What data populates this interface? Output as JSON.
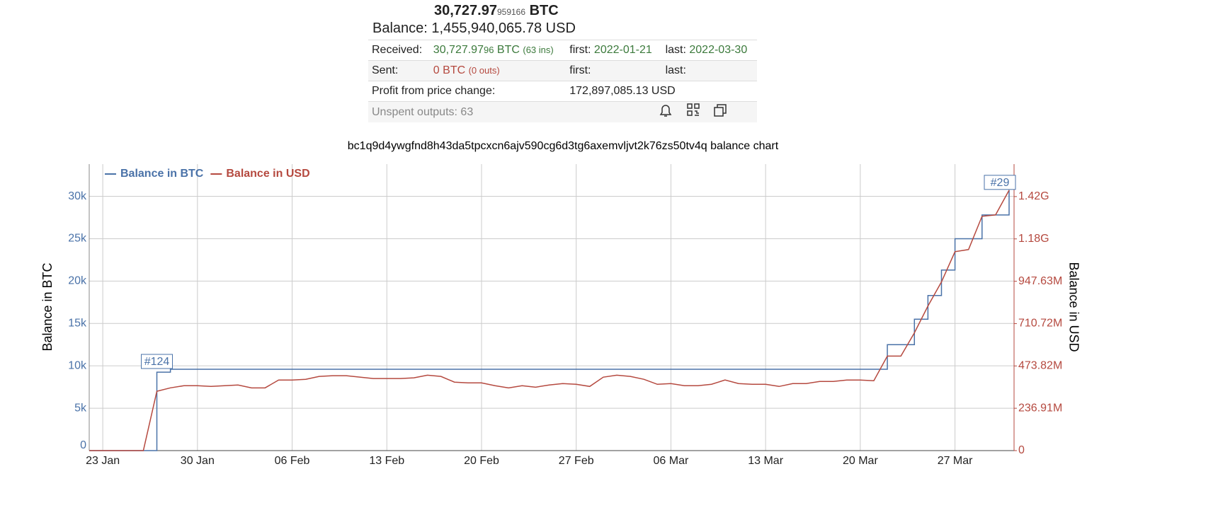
{
  "summary": {
    "btc_main": "30,727.97",
    "btc_small": "959166",
    "btc_unit": "BTC",
    "balance_label": "Balance:",
    "balance_usd": "1,455,940,065.78 USD",
    "received_label": "Received:",
    "received_main": "30,727.97",
    "received_small": "96",
    "received_unit": "BTC",
    "received_ins": "(63 ins)",
    "received_first_label": "first:",
    "received_first": "2022-01-21",
    "received_last_label": "last:",
    "received_last": "2022-03-30",
    "sent_label": "Sent:",
    "sent_value": "0 BTC",
    "sent_outs": "(0 outs)",
    "sent_first_label": "first:",
    "sent_last_label": "last:",
    "profit_label": "Profit from price change:",
    "profit_value": "172,897,085.13 USD",
    "unspent": "Unspent outputs: 63"
  },
  "chart_data": {
    "type": "line",
    "title": "bc1q9d4ywgfnd8h43da5tpcxcn6ajv590cg6d3tg6axemvljvt2k76zs50tv4q balance chart",
    "y_label": "Balance in BTC",
    "y2_label": "Balance in USD",
    "x": [
      "22 Jan",
      "23 Jan",
      "24 Jan",
      "25 Jan",
      "26 Jan",
      "27 Jan",
      "28 Jan",
      "29 Jan",
      "30 Jan",
      "31 Jan",
      "01 Feb",
      "02 Feb",
      "03 Feb",
      "04 Feb",
      "05 Feb",
      "06 Feb",
      "07 Feb",
      "08 Feb",
      "09 Feb",
      "10 Feb",
      "11 Feb",
      "12 Feb",
      "13 Feb",
      "14 Feb",
      "15 Feb",
      "16 Feb",
      "17 Feb",
      "18 Feb",
      "19 Feb",
      "20 Feb",
      "21 Feb",
      "22 Feb",
      "23 Feb",
      "24 Feb",
      "25 Feb",
      "26 Feb",
      "27 Feb",
      "28 Feb",
      "01 Mar",
      "02 Mar",
      "03 Mar",
      "04 Mar",
      "05 Mar",
      "06 Mar",
      "07 Mar",
      "08 Mar",
      "09 Mar",
      "10 Mar",
      "11 Mar",
      "12 Mar",
      "13 Mar",
      "14 Mar",
      "15 Mar",
      "16 Mar",
      "17 Mar",
      "18 Mar",
      "19 Mar",
      "20 Mar",
      "21 Mar",
      "22 Mar",
      "23 Mar",
      "24 Mar",
      "25 Mar",
      "26 Mar",
      "27 Mar",
      "28 Mar",
      "29 Mar",
      "30 Mar",
      "31 Mar"
    ],
    "xlim": [
      "22 Jan",
      "31 Mar"
    ],
    "xticks": [
      "23 Jan",
      "30 Jan",
      "06 Feb",
      "13 Feb",
      "20 Feb",
      "27 Feb",
      "06 Mar",
      "13 Mar",
      "20 Mar",
      "27 Mar"
    ],
    "ylim": [
      0,
      33800
    ],
    "yticks": [
      0,
      {
        "value": 5000,
        "label": "5k"
      },
      {
        "value": 10000,
        "label": "10k"
      },
      {
        "value": 15000,
        "label": "15k"
      },
      {
        "value": 20000,
        "label": "20k"
      },
      {
        "value": 25000,
        "label": "25k"
      },
      {
        "value": 30000,
        "label": "30k"
      }
    ],
    "y2lim": [
      0,
      1603000000
    ],
    "y2ticks": [
      0,
      {
        "value": 236910000,
        "label": "236.91M"
      },
      {
        "value": 473820000,
        "label": "473.82M"
      },
      {
        "value": 710720000,
        "label": "710.72M"
      },
      {
        "value": 947630000,
        "label": "947.63M"
      },
      {
        "value": 1184540000,
        "label": "1.18G"
      },
      {
        "value": 1421450000,
        "label": "1.42G"
      }
    ],
    "grid": true,
    "legend": "top-left",
    "series": [
      {
        "name": "Balance in BTC",
        "color": "#4a72a8",
        "step": true,
        "values": [
          0,
          0,
          0,
          0,
          0,
          9250,
          9600,
          9600,
          9600,
          9600,
          9600,
          9600,
          9600,
          9600,
          9600,
          9600,
          9600,
          9600,
          9600,
          9600,
          9600,
          9600,
          9600,
          9600,
          9600,
          9600,
          9600,
          9600,
          9600,
          9600,
          9600,
          9600,
          9600,
          9600,
          9600,
          9600,
          9600,
          9600,
          9600,
          9600,
          9600,
          9600,
          9600,
          9600,
          9600,
          9600,
          9600,
          9600,
          9600,
          9600,
          9600,
          9600,
          9600,
          9600,
          9600,
          9600,
          9600,
          9600,
          9600,
          12500,
          12500,
          15500,
          18300,
          21300,
          25000,
          25000,
          27800,
          27800,
          30727.97
        ]
      },
      {
        "name": "Balance in USD",
        "color": "#b5493f",
        "axis": "y2",
        "values": [
          0,
          0,
          0,
          0,
          0,
          332000000,
          351000000,
          363000000,
          363000000,
          359000000,
          363000000,
          367000000,
          351000000,
          351000000,
          395000000,
          395000000,
          399000000,
          415000000,
          419000000,
          419000000,
          411000000,
          403000000,
          403000000,
          403000000,
          407000000,
          422000000,
          415000000,
          383000000,
          379000000,
          379000000,
          363000000,
          351000000,
          363000000,
          355000000,
          367000000,
          375000000,
          371000000,
          359000000,
          411000000,
          422000000,
          415000000,
          399000000,
          371000000,
          375000000,
          363000000,
          363000000,
          371000000,
          395000000,
          375000000,
          371000000,
          371000000,
          359000000,
          375000000,
          375000000,
          387000000,
          387000000,
          395000000,
          395000000,
          391000000,
          529000000,
          529000000,
          659000000,
          809000000,
          944000000,
          1113000000,
          1125000000,
          1311000000,
          1319000000,
          1457000000
        ]
      }
    ],
    "annotations": [
      {
        "text": "#124",
        "x": "27 Jan",
        "y": 9600
      },
      {
        "text": "#29",
        "x": "31 Mar",
        "y": 30727.97
      }
    ]
  }
}
